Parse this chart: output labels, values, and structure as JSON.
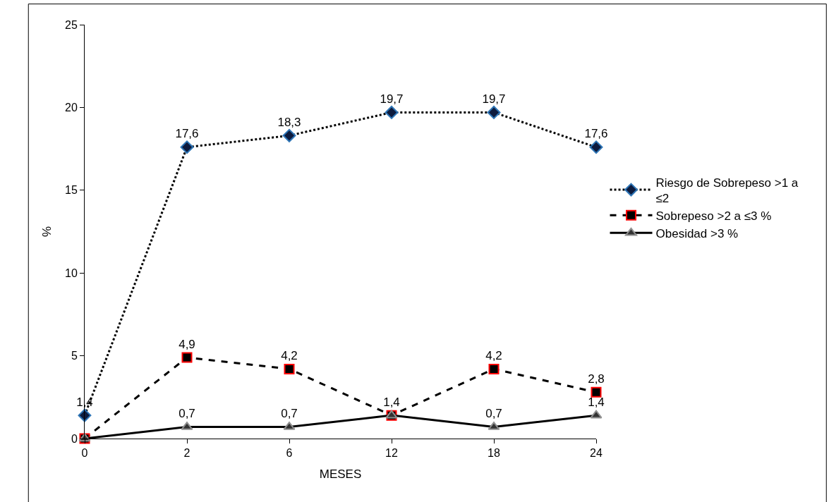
{
  "chart_data": {
    "type": "line",
    "xlabel": "MESES",
    "ylabel": "%",
    "categories": [
      "0",
      "2",
      "6",
      "12",
      "18",
      "24"
    ],
    "series": [
      {
        "name": "Riesgo de Sobrepeso >1 a ≤2",
        "color": "#000000",
        "marker": "diamond",
        "line_style": "dotted",
        "values": [
          1.4,
          17.6,
          18.3,
          19.7,
          19.7,
          17.6
        ],
        "value_labels": [
          "1,4",
          "17,6",
          "18,3",
          "19,7",
          "19,7",
          "17,6"
        ]
      },
      {
        "name": "Sobrepeso >2 a ≤3 %",
        "color": "#000000",
        "marker": "square",
        "line_style": "dashed",
        "values": [
          0,
          4.9,
          4.2,
          1.4,
          4.2,
          2.8
        ],
        "value_labels": [
          null,
          "4,9",
          "4,2",
          null,
          "4,2",
          "2,8"
        ]
      },
      {
        "name": "Obesidad >3 %",
        "color": "#000000",
        "marker": "triangle",
        "line_style": "solid",
        "values": [
          0,
          0.7,
          0.7,
          1.4,
          0.7,
          1.4
        ],
        "value_labels": [
          null,
          "0,7",
          "0,7",
          "1,4",
          "0,7",
          "1,4"
        ]
      }
    ],
    "ylim": [
      0,
      25
    ],
    "yticks": [
      0,
      5,
      10,
      15,
      20,
      25
    ],
    "grid": false,
    "legend": "right"
  }
}
